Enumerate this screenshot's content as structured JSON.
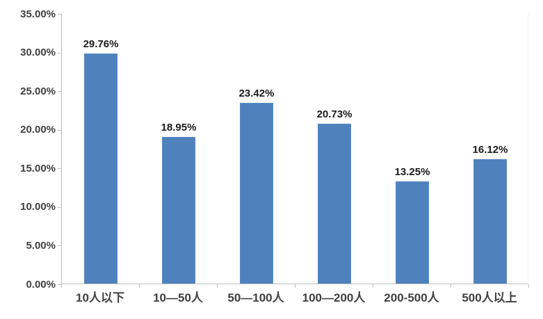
{
  "chart_data": {
    "type": "bar",
    "title": "",
    "xlabel": "",
    "ylabel": "",
    "categories": [
      "10人以下",
      "10—50人",
      "50—100人",
      "100—200人",
      "200-500人",
      "500人以上"
    ],
    "values": [
      29.76,
      18.95,
      23.42,
      20.73,
      13.25,
      16.12
    ],
    "value_labels": [
      "29.76%",
      "18.95%",
      "23.42%",
      "20.73%",
      "13.25%",
      "16.12%"
    ],
    "ylim": [
      0,
      35
    ],
    "y_tick_step": 5,
    "y_tick_labels": [
      "0.00%",
      "5.00%",
      "10.00%",
      "15.00%",
      "20.00%",
      "25.00%",
      "30.00%",
      "35.00%"
    ],
    "grid": "off",
    "legend": "none",
    "bar_color": "#4f81bd",
    "axis_color": "#bfbfbf",
    "label_color": "#1a1a1a",
    "tick_label_color": "#404040"
  }
}
